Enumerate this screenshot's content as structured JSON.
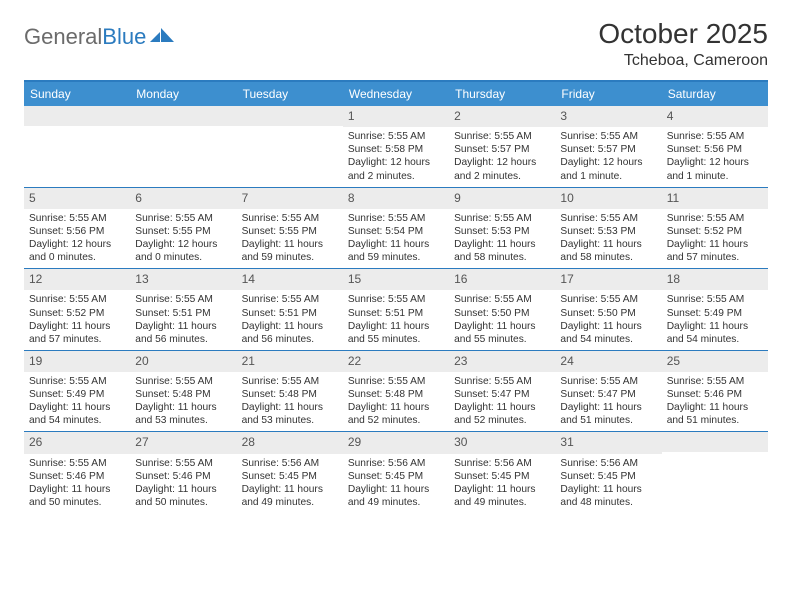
{
  "brand": {
    "part1": "General",
    "part2": "Blue"
  },
  "title": "October 2025",
  "location": "Tcheboa, Cameroon",
  "colors": {
    "header_bar": "#3d8fcf",
    "accent": "#2b7bbf",
    "daynum_bg": "#ececec",
    "text": "#333333",
    "logo_gray": "#6b6b6b"
  },
  "days_of_week": [
    "Sunday",
    "Monday",
    "Tuesday",
    "Wednesday",
    "Thursday",
    "Friday",
    "Saturday"
  ],
  "weeks": [
    [
      {
        "n": "",
        "sunrise": "",
        "sunset": "",
        "daylight": ""
      },
      {
        "n": "",
        "sunrise": "",
        "sunset": "",
        "daylight": ""
      },
      {
        "n": "",
        "sunrise": "",
        "sunset": "",
        "daylight": ""
      },
      {
        "n": "1",
        "sunrise": "Sunrise: 5:55 AM",
        "sunset": "Sunset: 5:58 PM",
        "daylight": "Daylight: 12 hours and 2 minutes."
      },
      {
        "n": "2",
        "sunrise": "Sunrise: 5:55 AM",
        "sunset": "Sunset: 5:57 PM",
        "daylight": "Daylight: 12 hours and 2 minutes."
      },
      {
        "n": "3",
        "sunrise": "Sunrise: 5:55 AM",
        "sunset": "Sunset: 5:57 PM",
        "daylight": "Daylight: 12 hours and 1 minute."
      },
      {
        "n": "4",
        "sunrise": "Sunrise: 5:55 AM",
        "sunset": "Sunset: 5:56 PM",
        "daylight": "Daylight: 12 hours and 1 minute."
      }
    ],
    [
      {
        "n": "5",
        "sunrise": "Sunrise: 5:55 AM",
        "sunset": "Sunset: 5:56 PM",
        "daylight": "Daylight: 12 hours and 0 minutes."
      },
      {
        "n": "6",
        "sunrise": "Sunrise: 5:55 AM",
        "sunset": "Sunset: 5:55 PM",
        "daylight": "Daylight: 12 hours and 0 minutes."
      },
      {
        "n": "7",
        "sunrise": "Sunrise: 5:55 AM",
        "sunset": "Sunset: 5:55 PM",
        "daylight": "Daylight: 11 hours and 59 minutes."
      },
      {
        "n": "8",
        "sunrise": "Sunrise: 5:55 AM",
        "sunset": "Sunset: 5:54 PM",
        "daylight": "Daylight: 11 hours and 59 minutes."
      },
      {
        "n": "9",
        "sunrise": "Sunrise: 5:55 AM",
        "sunset": "Sunset: 5:53 PM",
        "daylight": "Daylight: 11 hours and 58 minutes."
      },
      {
        "n": "10",
        "sunrise": "Sunrise: 5:55 AM",
        "sunset": "Sunset: 5:53 PM",
        "daylight": "Daylight: 11 hours and 58 minutes."
      },
      {
        "n": "11",
        "sunrise": "Sunrise: 5:55 AM",
        "sunset": "Sunset: 5:52 PM",
        "daylight": "Daylight: 11 hours and 57 minutes."
      }
    ],
    [
      {
        "n": "12",
        "sunrise": "Sunrise: 5:55 AM",
        "sunset": "Sunset: 5:52 PM",
        "daylight": "Daylight: 11 hours and 57 minutes."
      },
      {
        "n": "13",
        "sunrise": "Sunrise: 5:55 AM",
        "sunset": "Sunset: 5:51 PM",
        "daylight": "Daylight: 11 hours and 56 minutes."
      },
      {
        "n": "14",
        "sunrise": "Sunrise: 5:55 AM",
        "sunset": "Sunset: 5:51 PM",
        "daylight": "Daylight: 11 hours and 56 minutes."
      },
      {
        "n": "15",
        "sunrise": "Sunrise: 5:55 AM",
        "sunset": "Sunset: 5:51 PM",
        "daylight": "Daylight: 11 hours and 55 minutes."
      },
      {
        "n": "16",
        "sunrise": "Sunrise: 5:55 AM",
        "sunset": "Sunset: 5:50 PM",
        "daylight": "Daylight: 11 hours and 55 minutes."
      },
      {
        "n": "17",
        "sunrise": "Sunrise: 5:55 AM",
        "sunset": "Sunset: 5:50 PM",
        "daylight": "Daylight: 11 hours and 54 minutes."
      },
      {
        "n": "18",
        "sunrise": "Sunrise: 5:55 AM",
        "sunset": "Sunset: 5:49 PM",
        "daylight": "Daylight: 11 hours and 54 minutes."
      }
    ],
    [
      {
        "n": "19",
        "sunrise": "Sunrise: 5:55 AM",
        "sunset": "Sunset: 5:49 PM",
        "daylight": "Daylight: 11 hours and 54 minutes."
      },
      {
        "n": "20",
        "sunrise": "Sunrise: 5:55 AM",
        "sunset": "Sunset: 5:48 PM",
        "daylight": "Daylight: 11 hours and 53 minutes."
      },
      {
        "n": "21",
        "sunrise": "Sunrise: 5:55 AM",
        "sunset": "Sunset: 5:48 PM",
        "daylight": "Daylight: 11 hours and 53 minutes."
      },
      {
        "n": "22",
        "sunrise": "Sunrise: 5:55 AM",
        "sunset": "Sunset: 5:48 PM",
        "daylight": "Daylight: 11 hours and 52 minutes."
      },
      {
        "n": "23",
        "sunrise": "Sunrise: 5:55 AM",
        "sunset": "Sunset: 5:47 PM",
        "daylight": "Daylight: 11 hours and 52 minutes."
      },
      {
        "n": "24",
        "sunrise": "Sunrise: 5:55 AM",
        "sunset": "Sunset: 5:47 PM",
        "daylight": "Daylight: 11 hours and 51 minutes."
      },
      {
        "n": "25",
        "sunrise": "Sunrise: 5:55 AM",
        "sunset": "Sunset: 5:46 PM",
        "daylight": "Daylight: 11 hours and 51 minutes."
      }
    ],
    [
      {
        "n": "26",
        "sunrise": "Sunrise: 5:55 AM",
        "sunset": "Sunset: 5:46 PM",
        "daylight": "Daylight: 11 hours and 50 minutes."
      },
      {
        "n": "27",
        "sunrise": "Sunrise: 5:55 AM",
        "sunset": "Sunset: 5:46 PM",
        "daylight": "Daylight: 11 hours and 50 minutes."
      },
      {
        "n": "28",
        "sunrise": "Sunrise: 5:56 AM",
        "sunset": "Sunset: 5:45 PM",
        "daylight": "Daylight: 11 hours and 49 minutes."
      },
      {
        "n": "29",
        "sunrise": "Sunrise: 5:56 AM",
        "sunset": "Sunset: 5:45 PM",
        "daylight": "Daylight: 11 hours and 49 minutes."
      },
      {
        "n": "30",
        "sunrise": "Sunrise: 5:56 AM",
        "sunset": "Sunset: 5:45 PM",
        "daylight": "Daylight: 11 hours and 49 minutes."
      },
      {
        "n": "31",
        "sunrise": "Sunrise: 5:56 AM",
        "sunset": "Sunset: 5:45 PM",
        "daylight": "Daylight: 11 hours and 48 minutes."
      },
      {
        "n": "",
        "sunrise": "",
        "sunset": "",
        "daylight": ""
      }
    ]
  ]
}
